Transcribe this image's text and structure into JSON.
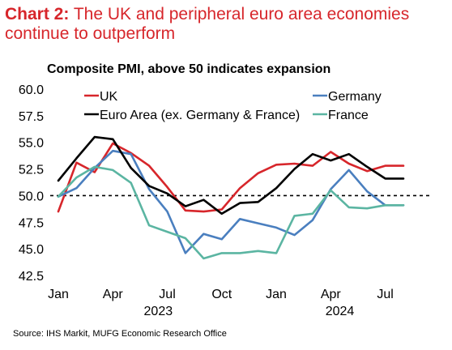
{
  "header": {
    "title_lead": "Chart 2:",
    "title_rest": "The UK and peripheral euro area economies continue to outperform"
  },
  "footer": {
    "source": "Source: IHS Markit, MUFG Economic Research Office"
  },
  "colors": {
    "title": "#d7262b",
    "UK": "#d7262b",
    "Germany": "#4a7fbf",
    "Euro Area (ex. Germany & France)": "#000000",
    "France": "#5bb5a2"
  },
  "chart_data": {
    "type": "line",
    "title": "Composite PMI, above 50 indicates  expansion",
    "x": [
      "2023-01",
      "2023-02",
      "2023-03",
      "2023-04",
      "2023-05",
      "2023-06",
      "2023-07",
      "2023-08",
      "2023-09",
      "2023-10",
      "2023-11",
      "2023-12",
      "2024-01",
      "2024-02",
      "2024-03",
      "2024-04",
      "2024-05",
      "2024-06",
      "2024-07",
      "2024-08"
    ],
    "x_tick_labels": [
      "Jan",
      "Apr",
      "Jul",
      "Oct",
      "Jan",
      "Apr",
      "Jul"
    ],
    "x_year_labels": [
      "2023",
      "2024"
    ],
    "ylim": [
      42.5,
      60.0
    ],
    "y_ticks": [
      "60.0",
      "57.5",
      "55.0",
      "52.5",
      "50.0",
      "47.5",
      "45.0",
      "42.5"
    ],
    "reference_line": 50.0,
    "legend_position": "top",
    "series": [
      {
        "name": "UK",
        "values": [
          48.5,
          53.1,
          52.2,
          54.9,
          54.0,
          52.8,
          50.8,
          48.6,
          48.5,
          48.7,
          50.7,
          52.1,
          52.9,
          53.0,
          52.8,
          54.1,
          53.0,
          52.3,
          52.8,
          52.8
        ]
      },
      {
        "name": "Germany",
        "values": [
          49.9,
          50.7,
          52.6,
          54.2,
          53.9,
          50.6,
          48.5,
          44.6,
          46.4,
          45.9,
          47.8,
          47.4,
          47.0,
          46.3,
          47.7,
          50.6,
          52.4,
          50.4,
          49.1,
          49.1
        ]
      },
      {
        "name": "Euro Area (ex. Germany & France)",
        "values": [
          51.4,
          53.5,
          55.5,
          55.3,
          52.6,
          50.9,
          50.2,
          49.0,
          49.6,
          48.3,
          49.3,
          49.4,
          50.7,
          52.5,
          53.9,
          53.3,
          53.9,
          52.7,
          51.6,
          51.6
        ]
      },
      {
        "name": "France",
        "values": [
          49.9,
          51.7,
          52.7,
          52.4,
          51.2,
          47.2,
          46.6,
          46.0,
          44.1,
          44.6,
          44.6,
          44.8,
          44.6,
          48.1,
          48.3,
          50.5,
          48.9,
          48.8,
          49.1,
          49.1
        ]
      }
    ]
  }
}
